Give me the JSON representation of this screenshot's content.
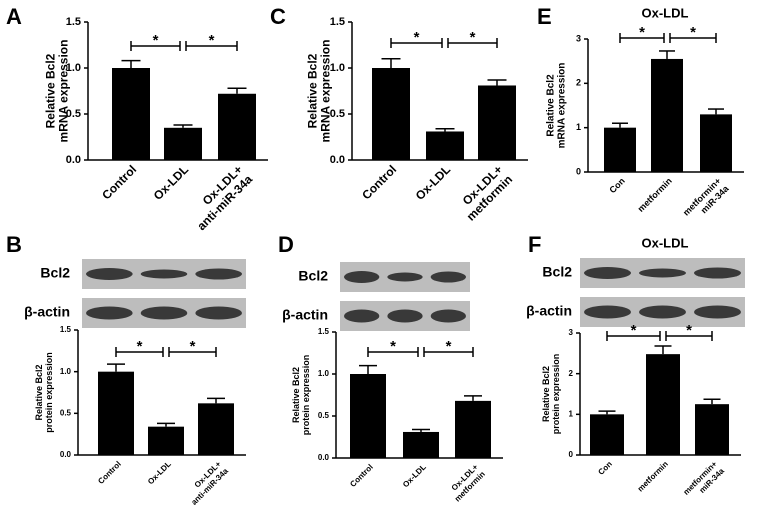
{
  "chart_data": [
    {
      "type": "bar",
      "panel": "A",
      "ylabel": "Relative Bcl2\nmRNA expression",
      "categories": [
        "Control",
        "Ox-LDL",
        "Ox-LDL+\nanti-miR-34a"
      ],
      "values": [
        1.0,
        0.35,
        0.72
      ],
      "errors": [
        0.08,
        0.03,
        0.06
      ],
      "color": "#000000",
      "ylim": [
        0,
        1.5
      ],
      "yticks": [
        {
          "value": 0,
          "label": "0.0"
        },
        {
          "value": 0.5,
          "label": "0.5"
        },
        {
          "value": 1,
          "label": "1.0"
        },
        {
          "value": 1.5,
          "label": "1.5"
        }
      ],
      "significance": [
        {
          "from": 0,
          "to": 1,
          "label": "*"
        },
        {
          "from": 1,
          "to": 2,
          "label": "*"
        }
      ]
    },
    {
      "type": "bar",
      "panel": "C",
      "ylabel": "Relative Bcl2\nmRNA expression",
      "categories": [
        "Control",
        "Ox-LDL",
        "Ox-LDL+\nmetformin"
      ],
      "values": [
        1.0,
        0.31,
        0.81
      ],
      "errors": [
        0.1,
        0.03,
        0.06
      ],
      "color": "#000000",
      "ylim": [
        0,
        1.5
      ],
      "yticks": [
        {
          "value": 0,
          "label": "0.0"
        },
        {
          "value": 0.5,
          "label": "0.5"
        },
        {
          "value": 1,
          "label": "1.0"
        },
        {
          "value": 1.5,
          "label": "1.5"
        }
      ],
      "significance": [
        {
          "from": 0,
          "to": 1,
          "label": "*"
        },
        {
          "from": 1,
          "to": 2,
          "label": "*"
        }
      ]
    },
    {
      "type": "bar",
      "panel": "E",
      "header": "Ox-LDL",
      "ylabel": "Relative Bcl2\nmRNA expression",
      "categories": [
        "Con",
        "metformin",
        "metformin+\nmiR-34a"
      ],
      "values": [
        1.0,
        2.55,
        1.3
      ],
      "errors": [
        0.1,
        0.18,
        0.12
      ],
      "color": "#000000",
      "ylim": [
        0,
        3
      ],
      "yticks": [
        0,
        1,
        2,
        3
      ],
      "significance": [
        {
          "from": 0,
          "to": 1,
          "label": "*"
        },
        {
          "from": 1,
          "to": 2,
          "label": "*"
        }
      ]
    },
    {
      "type": "bar",
      "panel": "B",
      "blot_labels": [
        "Bcl2",
        "β-actin"
      ],
      "ylabel": "Relative Bcl2\nprotein expression",
      "categories": [
        "Control",
        "Ox-LDL",
        "Ox-LDL+\nanti-miR-34a"
      ],
      "values": [
        1.0,
        0.34,
        0.62
      ],
      "errors": [
        0.09,
        0.04,
        0.06
      ],
      "color": "#000000",
      "ylim": [
        0,
        1.5
      ],
      "yticks": [
        {
          "value": 0,
          "label": "0.0"
        },
        {
          "value": 0.5,
          "label": "0.5"
        },
        {
          "value": 1,
          "label": "1.0"
        },
        {
          "value": 1.5,
          "label": "1.5"
        }
      ],
      "significance": [
        {
          "from": 0,
          "to": 1,
          "label": "*"
        },
        {
          "from": 1,
          "to": 2,
          "label": "*"
        }
      ]
    },
    {
      "type": "bar",
      "panel": "D",
      "blot_labels": [
        "Bcl2",
        "β-actin"
      ],
      "ylabel": "Relative Bcl2\nprotein expression",
      "categories": [
        "Control",
        "Ox-LDL",
        "Ox-LDL+\nmetformin"
      ],
      "values": [
        1.0,
        0.31,
        0.68
      ],
      "errors": [
        0.1,
        0.03,
        0.06
      ],
      "color": "#000000",
      "ylim": [
        0,
        1.5
      ],
      "yticks": [
        {
          "value": 0,
          "label": "0.0"
        },
        {
          "value": 0.5,
          "label": "0.5"
        },
        {
          "value": 1,
          "label": "1.0"
        },
        {
          "value": 1.5,
          "label": "1.5"
        }
      ],
      "significance": [
        {
          "from": 0,
          "to": 1,
          "label": "*"
        },
        {
          "from": 1,
          "to": 2,
          "label": "*"
        }
      ]
    },
    {
      "type": "bar",
      "panel": "F",
      "header": "Ox-LDL",
      "blot_labels": [
        "Bcl2",
        "β-actin"
      ],
      "ylabel": "Relative Bcl2\nprotein expression",
      "categories": [
        "Con",
        "metformin",
        "metformin+\nmiR-34a"
      ],
      "values": [
        1.0,
        2.48,
        1.25
      ],
      "errors": [
        0.08,
        0.2,
        0.12
      ],
      "color": "#000000",
      "ylim": [
        0,
        3
      ],
      "yticks": [
        0,
        1,
        2,
        3
      ],
      "significance": [
        {
          "from": 0,
          "to": 1,
          "label": "*"
        },
        {
          "from": 1,
          "to": 2,
          "label": "*"
        }
      ]
    }
  ]
}
